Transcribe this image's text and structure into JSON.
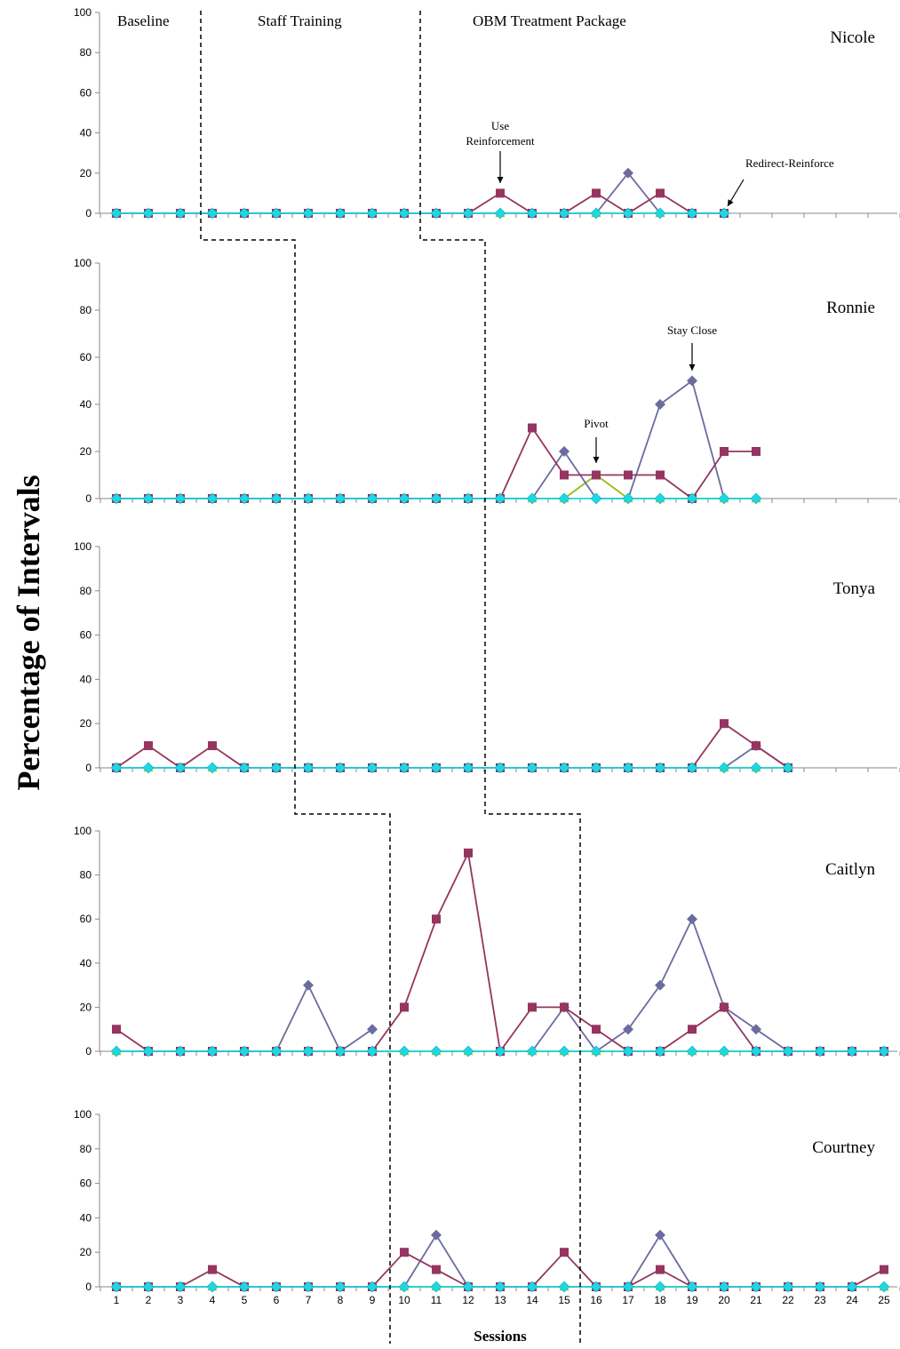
{
  "chart_data": {
    "type": "line",
    "ylabel": "Percentage of Intervals",
    "xlabel": "Sessions",
    "x": [
      1,
      2,
      3,
      4,
      5,
      6,
      7,
      8,
      9,
      10,
      11,
      12,
      13,
      14,
      15,
      16,
      17,
      18,
      19,
      20,
      21,
      22,
      23,
      24,
      25
    ],
    "ylim": [
      0,
      100
    ],
    "yticks": [
      0,
      20,
      40,
      60,
      80,
      100
    ],
    "grid": false,
    "phases": [
      "Baseline",
      "Staff Training",
      "OBM Treatment Package"
    ],
    "colors": {
      "purple": "#6b6b9e",
      "magenta": "#953560",
      "lime": "#99c01a",
      "cyan": "#1fd6e4",
      "triangle": "#d6b800",
      "line": "#000000"
    },
    "panels": [
      {
        "name": "Nicole",
        "last_session": 20,
        "annotations": [
          {
            "lines": [
              "Use",
              "Reinforcement"
            ],
            "session": 13
          },
          {
            "lines": [
              "Redirect-Reinforce"
            ],
            "session": 20
          }
        ],
        "series": [
          {
            "values": [
              0,
              0,
              0,
              0,
              0,
              0,
              0,
              0,
              0,
              0,
              0,
              0,
              0,
              0,
              0,
              0,
              20,
              0,
              0,
              0
            ]
          },
          {
            "values": [
              0,
              0,
              0,
              0,
              0,
              0,
              0,
              0,
              0,
              0,
              0,
              0,
              10,
              0,
              0,
              10,
              0,
              10,
              0,
              0
            ]
          },
          {
            "values": [
              0,
              0,
              0,
              0,
              0,
              0,
              0,
              0,
              0,
              0,
              0,
              0,
              0,
              0,
              0,
              0,
              0,
              0,
              0,
              0
            ]
          },
          {
            "values": [
              0,
              0,
              0,
              0,
              0,
              0,
              0,
              0,
              0,
              0,
              0,
              0,
              0,
              0,
              0,
              0,
              0,
              0,
              0,
              0
            ]
          }
        ]
      },
      {
        "name": "Ronnie",
        "last_session": 21,
        "annotations": [
          {
            "lines": [
              "Pivot"
            ],
            "session": 16
          },
          {
            "lines": [
              "Stay Close"
            ],
            "session": 19
          }
        ],
        "series": [
          {
            "values": [
              0,
              0,
              0,
              0,
              0,
              0,
              0,
              0,
              0,
              0,
              0,
              0,
              0,
              0,
              20,
              0,
              0,
              40,
              50,
              0,
              null
            ]
          },
          {
            "values": [
              0,
              0,
              0,
              0,
              0,
              0,
              0,
              0,
              0,
              0,
              0,
              0,
              0,
              30,
              10,
              10,
              10,
              10,
              0,
              20,
              20
            ]
          },
          {
            "values": [
              0,
              0,
              0,
              0,
              0,
              0,
              0,
              0,
              0,
              0,
              0,
              0,
              0,
              0,
              0,
              10,
              0,
              0,
              0,
              0,
              0
            ]
          },
          {
            "values": [
              0,
              0,
              0,
              0,
              0,
              0,
              0,
              0,
              0,
              0,
              0,
              0,
              0,
              0,
              0,
              0,
              0,
              0,
              0,
              0,
              0
            ]
          }
        ]
      },
      {
        "name": "Tonya",
        "last_session": 22,
        "annotations": [],
        "series": [
          {
            "values": [
              0,
              0,
              0,
              0,
              0,
              0,
              0,
              0,
              0,
              0,
              0,
              0,
              0,
              0,
              0,
              0,
              0,
              0,
              0,
              0,
              10,
              0
            ]
          },
          {
            "values": [
              0,
              10,
              0,
              10,
              0,
              0,
              0,
              0,
              0,
              0,
              0,
              0,
              0,
              0,
              0,
              0,
              0,
              0,
              0,
              20,
              10,
              0
            ]
          },
          {
            "values": [
              0,
              0,
              0,
              0,
              0,
              0,
              0,
              0,
              0,
              0,
              0,
              0,
              0,
              0,
              0,
              0,
              0,
              0,
              0,
              0,
              0,
              0
            ]
          },
          {
            "values": [
              0,
              0,
              0,
              0,
              0,
              0,
              0,
              0,
              0,
              0,
              0,
              0,
              0,
              0,
              0,
              0,
              0,
              0,
              0,
              0,
              0,
              0
            ]
          }
        ]
      },
      {
        "name": "Caitlyn",
        "last_session": 25,
        "annotations": [],
        "series": [
          {
            "values": [
              0,
              0,
              0,
              0,
              0,
              0,
              30,
              0,
              10,
              null,
              null,
              null,
              0,
              0,
              20,
              0,
              10,
              30,
              60,
              20,
              10,
              0,
              0,
              0,
              0
            ]
          },
          {
            "values": [
              10,
              0,
              0,
              0,
              0,
              0,
              0,
              0,
              0,
              20,
              60,
              90,
              0,
              20,
              20,
              10,
              0,
              0,
              10,
              20,
              0,
              0,
              0,
              0,
              0
            ]
          },
          {
            "values": [
              0,
              0,
              0,
              0,
              0,
              0,
              0,
              0,
              0,
              0,
              0,
              0,
              0,
              0,
              0,
              0,
              0,
              0,
              0,
              0,
              0,
              0,
              0,
              0,
              0
            ]
          },
          {
            "values": [
              0,
              0,
              0,
              0,
              0,
              0,
              0,
              0,
              0,
              0,
              0,
              0,
              0,
              0,
              0,
              0,
              0,
              0,
              0,
              0,
              0,
              0,
              0,
              0,
              0
            ]
          }
        ]
      },
      {
        "name": "Courtney",
        "last_session": 25,
        "annotations": [],
        "series": [
          {
            "values": [
              0,
              0,
              0,
              0,
              0,
              0,
              0,
              0,
              0,
              0,
              30,
              0,
              0,
              0,
              0,
              0,
              0,
              30,
              0,
              0,
              0,
              0,
              0,
              0,
              0
            ]
          },
          {
            "values": [
              0,
              0,
              0,
              10,
              0,
              0,
              0,
              0,
              0,
              20,
              10,
              0,
              0,
              0,
              20,
              0,
              0,
              10,
              0,
              0,
              0,
              0,
              0,
              0,
              10
            ]
          },
          {
            "values": [
              0,
              0,
              0,
              0,
              0,
              0,
              0,
              0,
              0,
              0,
              0,
              0,
              0,
              0,
              0,
              0,
              0,
              0,
              0,
              0,
              0,
              0,
              0,
              0,
              0
            ]
          },
          {
            "values": [
              0,
              0,
              0,
              0,
              0,
              0,
              0,
              0,
              0,
              0,
              0,
              0,
              0,
              0,
              0,
              0,
              0,
              0,
              0,
              0,
              0,
              0,
              0,
              0,
              0
            ]
          }
        ]
      }
    ]
  }
}
